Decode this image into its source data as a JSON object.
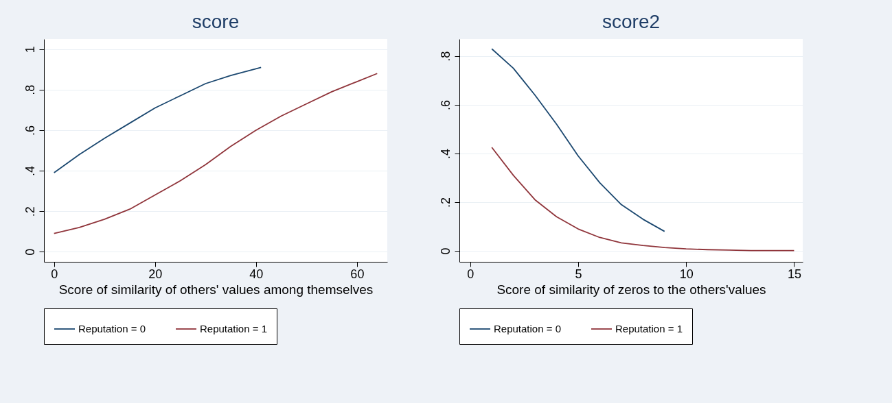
{
  "chart_data": [
    {
      "type": "line",
      "title": "score",
      "xlabel": "Score of similarity of others' values among themselves",
      "xlim": [
        -2,
        66
      ],
      "ylim": [
        -0.05,
        1.05
      ],
      "xticks": [
        {
          "value": 0,
          "label": "0"
        },
        20,
        40,
        60
      ],
      "yticks": [
        {
          "value": 0,
          "label": "0"
        },
        {
          "value": 0.2,
          "label": ".2"
        },
        {
          "value": 0.4,
          "label": ".4"
        },
        {
          "value": 0.6,
          "label": ".6"
        },
        {
          "value": 0.8,
          "label": ".8"
        },
        1
      ],
      "grid": "y",
      "legend": "bottom",
      "series": [
        {
          "name": "Reputation = 0",
          "color": "#1a476f",
          "x": [
            0,
            5,
            10,
            15,
            20,
            25,
            30,
            35,
            41
          ],
          "values": [
            0.39,
            0.48,
            0.56,
            0.635,
            0.71,
            0.77,
            0.83,
            0.87,
            0.91
          ]
        },
        {
          "name": "Reputation = 1",
          "color": "#90353b",
          "x": [
            0,
            5,
            10,
            15,
            20,
            25,
            30,
            35,
            40,
            45,
            50,
            55,
            60,
            64
          ],
          "values": [
            0.09,
            0.12,
            0.16,
            0.21,
            0.28,
            0.35,
            0.43,
            0.52,
            0.6,
            0.67,
            0.73,
            0.79,
            0.84,
            0.88
          ]
        }
      ]
    },
    {
      "type": "line",
      "title": "score2",
      "xlabel": "Score of similarity of zeros to the others'values",
      "xlim": [
        -0.5,
        15.4
      ],
      "ylim": [
        -0.045,
        0.87
      ],
      "xticks": [
        {
          "value": 0,
          "label": "0"
        },
        5,
        10,
        15
      ],
      "yticks": [
        {
          "value": 0,
          "label": "0"
        },
        {
          "value": 0.2,
          "label": ".2"
        },
        {
          "value": 0.4,
          "label": ".4"
        },
        {
          "value": 0.6,
          "label": ".6"
        },
        {
          "value": 0.8,
          "label": ".8"
        }
      ],
      "grid": "y",
      "legend": "bottom",
      "series": [
        {
          "name": "Reputation = 0",
          "color": "#1a476f",
          "x": [
            1,
            2,
            3,
            4,
            5,
            6,
            7,
            8,
            9
          ],
          "values": [
            0.83,
            0.75,
            0.64,
            0.52,
            0.39,
            0.28,
            0.19,
            0.13,
            0.08
          ]
        },
        {
          "name": "Reputation = 1",
          "color": "#90353b",
          "x": [
            1,
            2,
            3,
            4,
            5,
            6,
            7,
            8,
            9,
            10,
            11,
            12,
            13,
            14,
            15
          ],
          "values": [
            0.425,
            0.31,
            0.21,
            0.14,
            0.09,
            0.055,
            0.033,
            0.022,
            0.014,
            0.008,
            0.005,
            0.003,
            0.001,
            0.001,
            0.001
          ]
        }
      ]
    }
  ]
}
